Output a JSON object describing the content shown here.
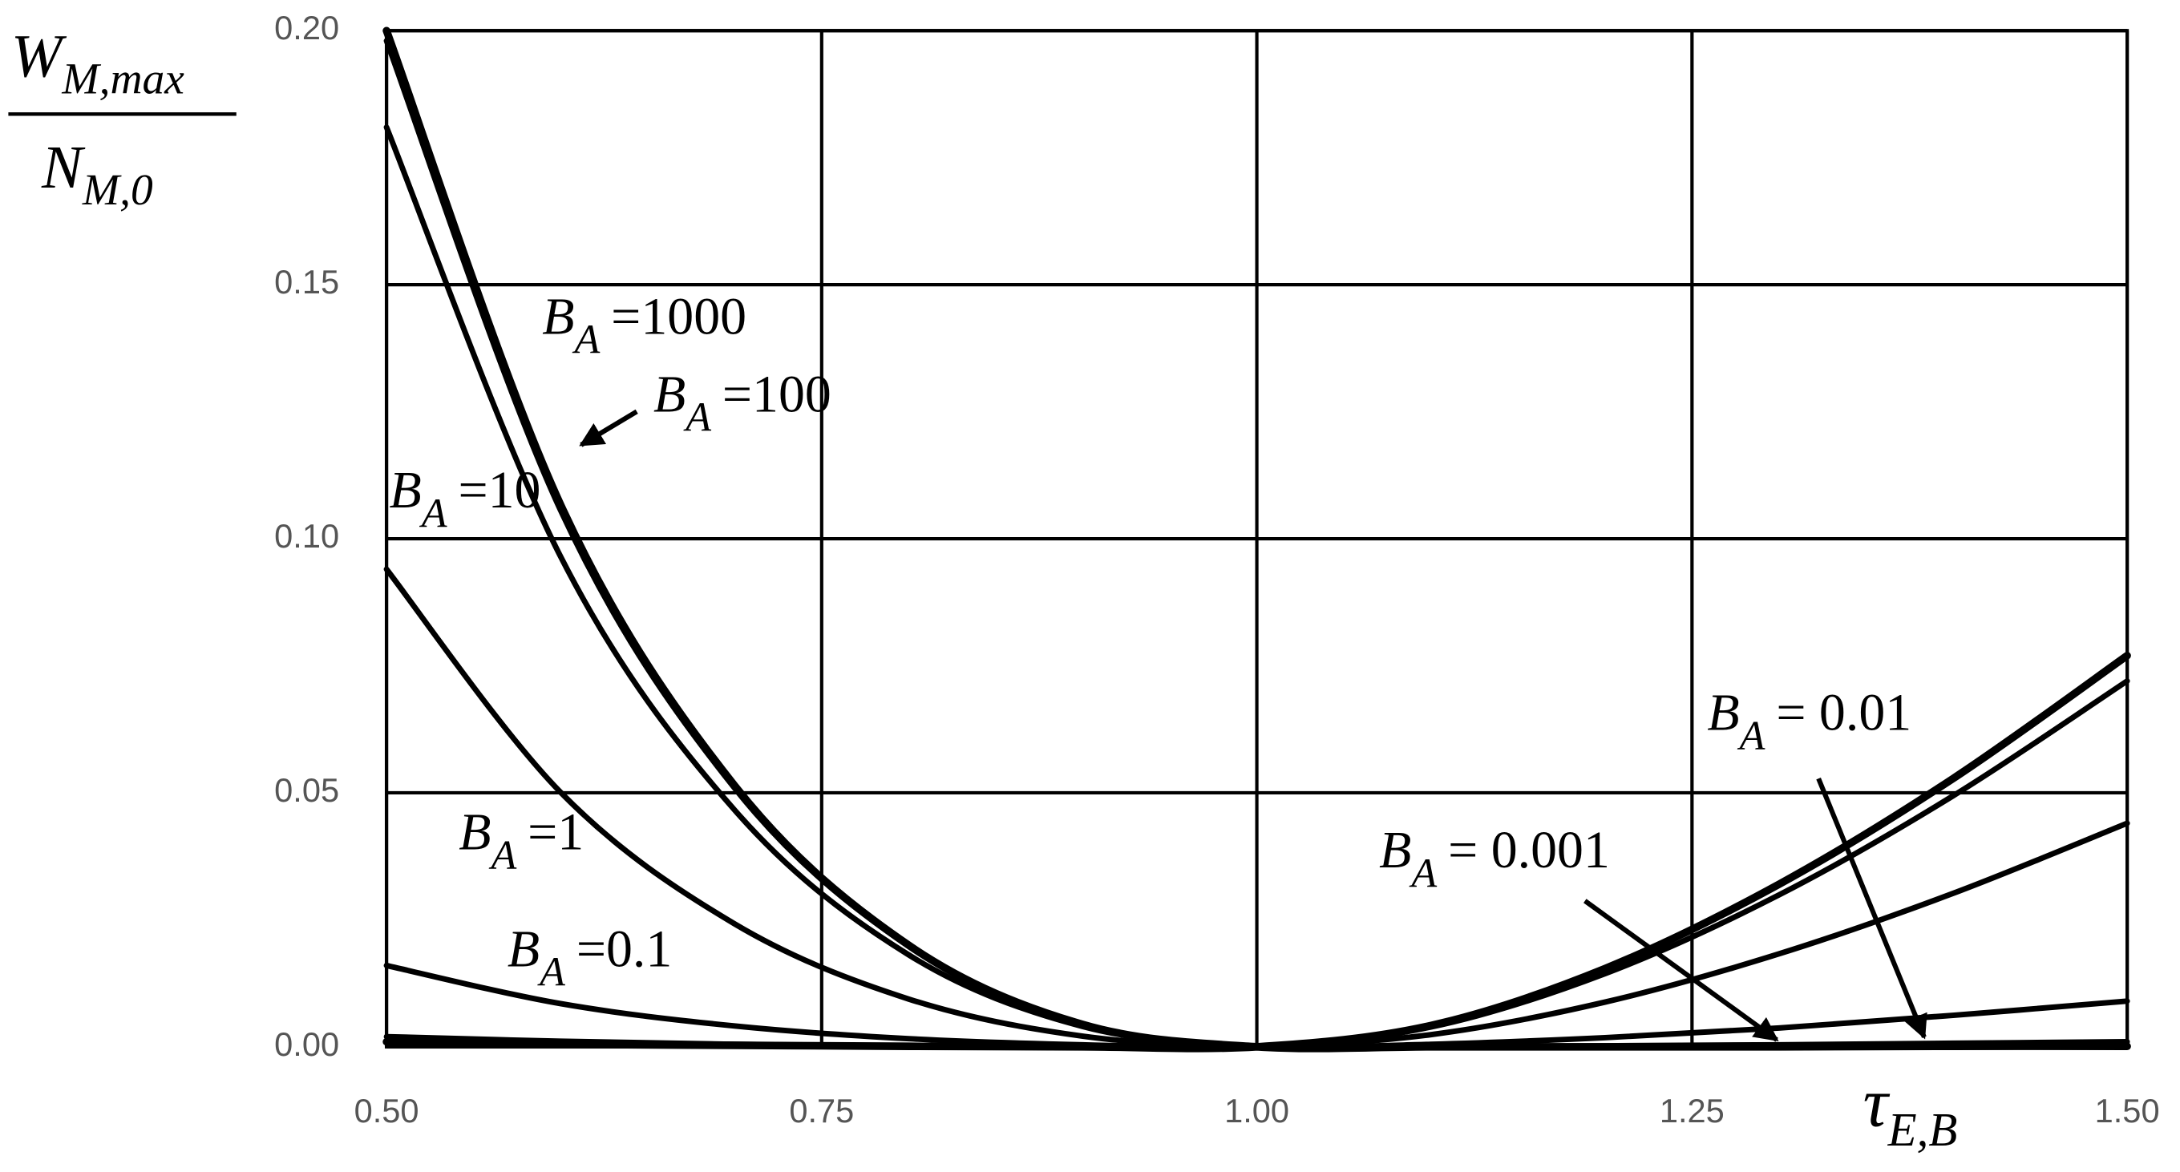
{
  "chart_data": {
    "type": "line",
    "x": [
      0.5,
      0.6,
      0.7,
      0.8,
      0.9,
      1.0,
      1.1,
      1.2,
      1.3,
      1.4,
      1.5
    ],
    "xlim": [
      0.5,
      1.5
    ],
    "ylim": [
      0,
      0.2
    ],
    "xticks": [
      {
        "value": 0.5,
        "label": "0.50"
      },
      {
        "value": 0.75,
        "label": "0.75"
      },
      {
        "value": 1.0,
        "label": "1.00"
      },
      {
        "value": 1.25,
        "label": "1.25"
      },
      {
        "value": 1.5,
        "label": "1.50"
      }
    ],
    "yticks": [
      {
        "value": 0,
        "label": "0.00"
      },
      {
        "value": 0.05,
        "label": "0.05"
      },
      {
        "value": 0.1,
        "label": "0.10"
      },
      {
        "value": 0.15,
        "label": "0.15"
      },
      {
        "value": 0.2,
        "label": "0.20"
      }
    ],
    "grid": true,
    "x_label": {
      "main": "τ",
      "sub": "E,B"
    },
    "y_label": {
      "num_main": "W",
      "num_sub": "M,max",
      "den_main": "N",
      "den_sub": "M,0"
    },
    "series": [
      {
        "color": "#000000",
        "values": [
          0.2,
          0.1067,
          0.0514,
          0.02,
          0.0044,
          0,
          0,
          0,
          0,
          0.0001,
          0.0001
        ]
      },
      {
        "color": "#000000",
        "values": [
          0.198,
          0.1056,
          0.0509,
          0.0198,
          0.0044,
          0,
          0,
          0,
          0,
          0.0001,
          0.0001
        ]
      },
      {
        "color": "#000000",
        "values": [
          0.181,
          0.0965,
          0.0466,
          0.0181,
          0.004,
          0,
          0.0001,
          0.0002,
          0.0004,
          0.0007,
          0.001
        ]
      },
      {
        "color": "#000000",
        "values": [
          0.094,
          0.0501,
          0.0242,
          0.0094,
          0.0021,
          0,
          0.0005,
          0.0018,
          0.0037,
          0.0062,
          0.009
        ]
      },
      {
        "color": "#000000",
        "values": [
          0.016,
          0.0085,
          0.0041,
          0.0016,
          0.0004,
          0,
          0.0024,
          0.0088,
          0.0183,
          0.0302,
          0.044
        ]
      },
      {
        "color": "#000000",
        "values": [
          0.002,
          0.0011,
          0.0005,
          0.0002,
          0,
          0,
          0.0039,
          0.0144,
          0.0299,
          0.0494,
          0.072
        ]
      },
      {
        "color": "#000000",
        "values": [
          0.001,
          0.0005,
          0.0003,
          0.0001,
          0,
          0,
          0.0042,
          0.0154,
          0.032,
          0.0528,
          0.077
        ]
      }
    ],
    "annotations": [
      {
        "main": "B",
        "sub": "A",
        "rest": "=1000"
      },
      {
        "main": "B",
        "sub": "A",
        "rest": "=100"
      },
      {
        "main": "B",
        "sub": "A",
        "rest": "=10"
      },
      {
        "main": "B",
        "sub": "A",
        "rest": "=1"
      },
      {
        "main": "B",
        "sub": "A",
        "rest": "=0.1"
      },
      {
        "main": "B",
        "sub": "A",
        "rest": "= 0.001"
      },
      {
        "main": "B",
        "sub": "A",
        "rest": "= 0.01"
      }
    ]
  }
}
